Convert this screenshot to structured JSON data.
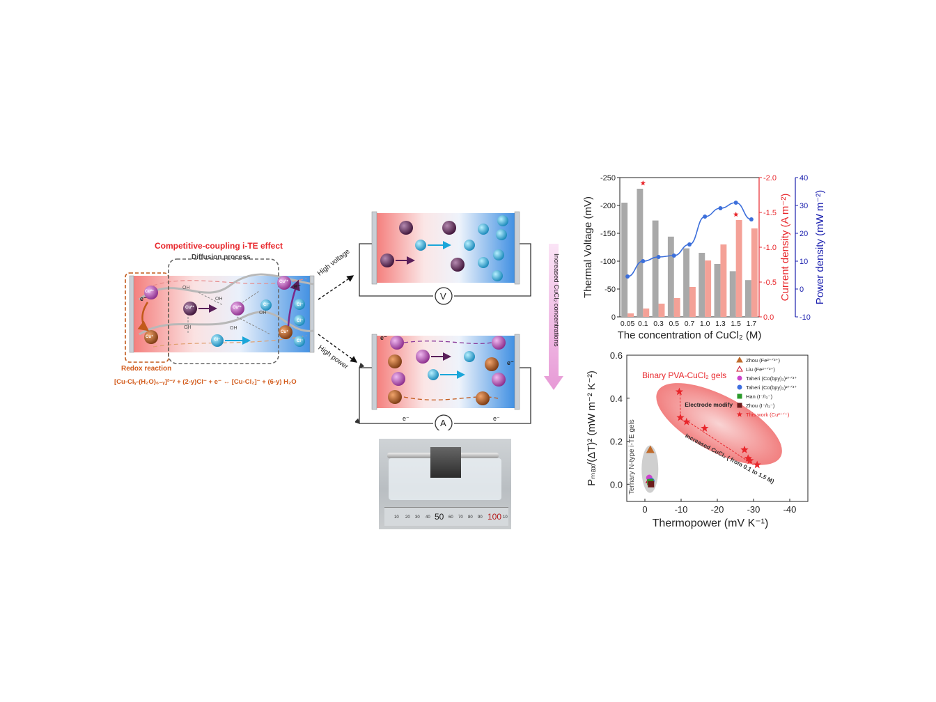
{
  "schematic": {
    "title": "Competitive-coupling i-TE effect",
    "diffusion_label": "Diffusion process",
    "redox_label": "Redox reaction",
    "equation": "[Cu-Clᵧ-(H₂O)₆₋ᵧ]²⁻ʸ + (2-y)Cl⁻ + e⁻ ↔ [Cu-Cl₂]⁻ + (6-y) H₂O",
    "ion_cu2": "Cu²⁺",
    "ion_cu1": "Cu⁺",
    "ion_cl": "Cl⁻",
    "oh": "OH",
    "electron": "e⁻",
    "high_voltage": "High voltage",
    "high_power": "High power",
    "voltmeter": "V",
    "ammeter": "A",
    "concentration_arrow": "Increased CuCl₂ concentrations",
    "plus": "+",
    "minus": "-"
  },
  "photo": {
    "ruler_labels": [
      "50",
      "100"
    ],
    "ruler_small_numbers": [
      "10",
      "20",
      "30",
      "40",
      "60",
      "70",
      "80",
      "90",
      "10"
    ]
  },
  "colors": {
    "red_accent": "#e8262b",
    "orange_text": "#d25a1a",
    "bar_gray": "#a9a9a9",
    "bar_pink": "#f4a197",
    "line_blue": "#3c6fdb",
    "axis_blue": "#1a1fae"
  },
  "chart_data": [
    {
      "type": "bar",
      "title": "",
      "xlabel": "The concentration of CuCl₂ (M)",
      "ylabel_left": "Thermal Voltage (mV)",
      "ylabel_right1": "Current density (A m⁻²)",
      "ylabel_right2": "Power density (mW m⁻²)",
      "categories": [
        "0.05",
        "0.1",
        "0.3",
        "0.5",
        "0.7",
        "1.0",
        "1.3",
        "1.5",
        "1.7"
      ],
      "series": [
        {
          "name": "Thermal Voltage",
          "axis": "left",
          "values": [
            -205,
            -230,
            -173,
            -144,
            -123,
            -115,
            -95,
            -82,
            -66
          ]
        },
        {
          "name": "Current density",
          "axis": "right1",
          "values": [
            -0.05,
            -0.12,
            -0.19,
            -0.27,
            -0.43,
            -0.81,
            -1.04,
            -1.39,
            -1.27
          ]
        },
        {
          "name": "Power density",
          "axis": "right2",
          "values": [
            4.5,
            10,
            11.5,
            12,
            16,
            26,
            29,
            31,
            25
          ]
        }
      ],
      "ylim_left": [
        0,
        -250
      ],
      "ylim_right1": [
        0,
        -2.0
      ],
      "ylim_right2": [
        -10,
        40
      ],
      "left_ticks": [
        "0",
        "-50",
        "-100",
        "-150",
        "-200",
        "-250"
      ],
      "right1_ticks": [
        "0.0",
        "-0.5",
        "-1.0",
        "-1.5",
        "-2.0"
      ],
      "right2_ticks": [
        "-10",
        "0",
        "10",
        "20",
        "30",
        "40"
      ],
      "star_categories": [
        "0.1",
        "1.5"
      ]
    },
    {
      "type": "scatter",
      "title": "",
      "xlabel": "Thermopower (mV K⁻¹)",
      "ylabel": "Pₘₐₓ/(ΔT)² (mW m⁻² K⁻²)",
      "xlim": [
        5,
        -45
      ],
      "ylim": [
        -0.08,
        0.6
      ],
      "x_ticks": [
        "0",
        "-10",
        "-20",
        "-30",
        "-40"
      ],
      "y_ticks": [
        "0.0",
        "0.2",
        "0.4",
        "0.6"
      ],
      "series": [
        {
          "name": "Zhou (Fe²⁺ᐟ³⁺)",
          "marker": "triangle-half",
          "color": "#c06a2a",
          "points": [
            [
              -1.5,
              0.16
            ]
          ]
        },
        {
          "name": "Liu (Fe²⁺ᐟ³⁺)",
          "marker": "triangle",
          "color": "#c8102e",
          "points": [
            [
              -1.3,
              0.02
            ]
          ]
        },
        {
          "name": "Taheri (Co(bpy)₃)²⁺ᐟ³⁺",
          "marker": "circle-half",
          "color": "#cc44cc",
          "points": [
            [
              -1.2,
              0.03
            ]
          ]
        },
        {
          "name": "Taheri (Co(bpy)₃)²⁺ᐟ³⁺",
          "marker": "circle-half",
          "color": "#3d6ee0",
          "points": [
            [
              -1.8,
              0.015
            ]
          ]
        },
        {
          "name": "Han (I⁻/I₃⁻)",
          "marker": "square-half",
          "color": "#2a9a2a",
          "points": [
            [
              -1.5,
              0.01
            ]
          ]
        },
        {
          "name": "Zhou (I⁻/I₃⁻)",
          "marker": "square-half",
          "color": "#6b1b1b",
          "points": [
            [
              -1.7,
              0.0
            ]
          ]
        },
        {
          "name": "This work (Cu²⁺ᐟ⁺)",
          "marker": "star",
          "color": "#e8262b",
          "points": [
            [
              -9.5,
              0.43
            ],
            [
              -9.8,
              0.31
            ],
            [
              -11.5,
              0.29
            ],
            [
              -16.5,
              0.26
            ],
            [
              -27.5,
              0.16
            ],
            [
              -28.5,
              0.12
            ],
            [
              -29,
              0.11
            ],
            [
              -31,
              0.09
            ]
          ]
        }
      ],
      "annotations": {
        "binary": "Binary PVA-CuCl₂ gels",
        "ternary": "Ternary N-type i-TE gels",
        "electrode": "Electrode modify",
        "increased": "Increased CuCl₂ ( from 0.1 to 1.5 M)"
      },
      "legend_position": "top-right"
    }
  ]
}
